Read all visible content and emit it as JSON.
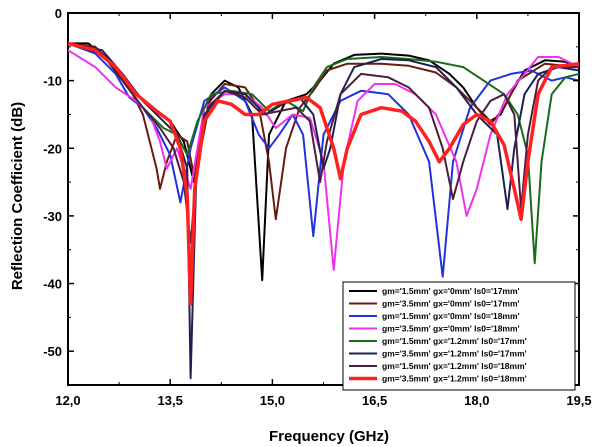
{
  "chart_data": {
    "type": "line",
    "title": "",
    "xlabel": "Frequency (GHz)",
    "ylabel": "Reflection Coefficient (dB)",
    "xlim": [
      12.0,
      19.5
    ],
    "ylim": [
      -55,
      0
    ],
    "xticks": [
      12.0,
      13.5,
      15.0,
      16.5,
      18.0,
      19.5
    ],
    "xtick_labels": [
      "12,0",
      "13,5",
      "15,0",
      "16,5",
      "18,0",
      "19,5"
    ],
    "yticks": [
      0,
      -10,
      -20,
      -30,
      -40,
      -50
    ],
    "ytick_labels": [
      "0",
      "-10",
      "-20",
      "-30",
      "-40",
      "-50"
    ],
    "legend_position": "bottom-right",
    "series": [
      {
        "name": "gm='1.5mm' gx='0mm' ls0='17mm'",
        "color": "#000000",
        "width": 2,
        "points": [
          [
            12.0,
            -4.5
          ],
          [
            12.3,
            -4.5
          ],
          [
            12.6,
            -7
          ],
          [
            12.9,
            -11
          ],
          [
            13.2,
            -14
          ],
          [
            13.5,
            -16
          ],
          [
            13.7,
            -19
          ],
          [
            13.85,
            -25
          ],
          [
            13.95,
            -20
          ],
          [
            14.1,
            -12
          ],
          [
            14.3,
            -10
          ],
          [
            14.5,
            -11
          ],
          [
            14.7,
            -15
          ],
          [
            14.85,
            -39.5
          ],
          [
            14.95,
            -18
          ],
          [
            15.2,
            -13
          ],
          [
            15.5,
            -12
          ],
          [
            15.7,
            -10
          ],
          [
            15.9,
            -7.5
          ],
          [
            16.2,
            -6.2
          ],
          [
            16.6,
            -6
          ],
          [
            17.0,
            -6.3
          ],
          [
            17.3,
            -7
          ],
          [
            17.6,
            -9
          ],
          [
            17.8,
            -11
          ],
          [
            18.0,
            -14
          ],
          [
            18.2,
            -16
          ],
          [
            18.35,
            -15
          ],
          [
            18.5,
            -12
          ],
          [
            18.7,
            -8.5
          ],
          [
            19.0,
            -7
          ],
          [
            19.3,
            -7.2
          ],
          [
            19.5,
            -8
          ]
        ]
      },
      {
        "name": "gm='3.5mm' gx='0mm' ls0='17mm'",
        "color": "#6b1a12",
        "width": 2,
        "points": [
          [
            12.0,
            -4.5
          ],
          [
            12.4,
            -5
          ],
          [
            12.8,
            -9
          ],
          [
            13.1,
            -15
          ],
          [
            13.3,
            -23
          ],
          [
            13.35,
            -26
          ],
          [
            13.45,
            -22
          ],
          [
            13.6,
            -18
          ],
          [
            13.75,
            -19
          ],
          [
            13.85,
            -24
          ],
          [
            14.0,
            -14
          ],
          [
            14.3,
            -10.5
          ],
          [
            14.6,
            -11
          ],
          [
            14.8,
            -14
          ],
          [
            14.95,
            -22
          ],
          [
            15.05,
            -30.5
          ],
          [
            15.2,
            -20
          ],
          [
            15.4,
            -14
          ],
          [
            15.6,
            -11.5
          ],
          [
            15.8,
            -8.5
          ],
          [
            16.1,
            -7.5
          ],
          [
            16.6,
            -7.5
          ],
          [
            17.0,
            -7.8
          ],
          [
            17.4,
            -8.8
          ],
          [
            17.7,
            -11
          ],
          [
            18.0,
            -14
          ],
          [
            18.2,
            -16.5
          ],
          [
            18.4,
            -14
          ],
          [
            18.6,
            -10
          ],
          [
            19.0,
            -7.5
          ],
          [
            19.5,
            -8
          ]
        ]
      },
      {
        "name": "gm='1.5mm' gx='0mm' ls0='18mm'",
        "color": "#2233dd",
        "width": 2,
        "points": [
          [
            12.0,
            -4.5
          ],
          [
            12.4,
            -6
          ],
          [
            12.7,
            -9
          ],
          [
            12.9,
            -12.5
          ],
          [
            13.1,
            -14
          ],
          [
            13.3,
            -17
          ],
          [
            13.5,
            -21
          ],
          [
            13.65,
            -28
          ],
          [
            13.8,
            -20
          ],
          [
            14.0,
            -13
          ],
          [
            14.3,
            -11
          ],
          [
            14.6,
            -13
          ],
          [
            14.8,
            -18
          ],
          [
            14.95,
            -20
          ],
          [
            15.1,
            -18
          ],
          [
            15.3,
            -15
          ],
          [
            15.45,
            -18
          ],
          [
            15.6,
            -33
          ],
          [
            15.75,
            -18
          ],
          [
            16.0,
            -13
          ],
          [
            16.3,
            -11.5
          ],
          [
            16.7,
            -12
          ],
          [
            17.0,
            -15
          ],
          [
            17.3,
            -22
          ],
          [
            17.5,
            -39
          ],
          [
            17.65,
            -22
          ],
          [
            17.9,
            -14
          ],
          [
            18.2,
            -10
          ],
          [
            18.5,
            -9
          ],
          [
            18.8,
            -8.5
          ],
          [
            19.1,
            -10
          ],
          [
            19.3,
            -9.5
          ],
          [
            19.5,
            -10
          ]
        ]
      },
      {
        "name": "gm='3.5mm' gx='0mm' ls0='18mm'",
        "color": "#ee33ee",
        "width": 2,
        "points": [
          [
            12.0,
            -5.5
          ],
          [
            12.4,
            -8
          ],
          [
            12.7,
            -11
          ],
          [
            13.0,
            -13
          ],
          [
            13.2,
            -15
          ],
          [
            13.35,
            -19
          ],
          [
            13.45,
            -23
          ],
          [
            13.6,
            -20
          ],
          [
            13.8,
            -26
          ],
          [
            14.0,
            -14
          ],
          [
            14.3,
            -12
          ],
          [
            14.6,
            -12
          ],
          [
            14.85,
            -14
          ],
          [
            15.05,
            -17
          ],
          [
            15.3,
            -15
          ],
          [
            15.55,
            -15.5
          ],
          [
            15.75,
            -22
          ],
          [
            15.9,
            -38
          ],
          [
            16.05,
            -22
          ],
          [
            16.25,
            -13
          ],
          [
            16.5,
            -10.5
          ],
          [
            16.8,
            -10.5
          ],
          [
            17.1,
            -12
          ],
          [
            17.4,
            -15
          ],
          [
            17.7,
            -22
          ],
          [
            17.85,
            -30
          ],
          [
            18.0,
            -26
          ],
          [
            18.2,
            -18
          ],
          [
            18.45,
            -12
          ],
          [
            18.7,
            -9
          ],
          [
            18.9,
            -6.5
          ],
          [
            19.2,
            -6.5
          ],
          [
            19.5,
            -8
          ]
        ]
      },
      {
        "name": "gm='1.5mm' gx='1.2mm' ls0='17mm'",
        "color": "#1a6b1a",
        "width": 2,
        "points": [
          [
            12.0,
            -4.5
          ],
          [
            12.5,
            -6
          ],
          [
            12.8,
            -10
          ],
          [
            13.1,
            -14
          ],
          [
            13.4,
            -17
          ],
          [
            13.6,
            -18
          ],
          [
            13.75,
            -21
          ],
          [
            13.9,
            -16
          ],
          [
            14.1,
            -12
          ],
          [
            14.4,
            -11.5
          ],
          [
            14.7,
            -12
          ],
          [
            14.95,
            -14.5
          ],
          [
            15.2,
            -13
          ],
          [
            15.45,
            -14.5
          ],
          [
            15.6,
            -11
          ],
          [
            15.8,
            -8
          ],
          [
            16.1,
            -6.8
          ],
          [
            16.6,
            -6.5
          ],
          [
            17.0,
            -6.8
          ],
          [
            17.4,
            -7.2
          ],
          [
            17.8,
            -8
          ],
          [
            18.1,
            -10
          ],
          [
            18.4,
            -12
          ],
          [
            18.6,
            -15
          ],
          [
            18.75,
            -21
          ],
          [
            18.85,
            -37
          ],
          [
            18.95,
            -22
          ],
          [
            19.1,
            -12
          ],
          [
            19.3,
            -9.5
          ],
          [
            19.5,
            -9
          ]
        ]
      },
      {
        "name": "gm='3.5mm' gx='1.2mm' ls0='17mm'",
        "color": "#202050",
        "width": 2,
        "points": [
          [
            12.0,
            -4.5
          ],
          [
            12.5,
            -5.5
          ],
          [
            12.8,
            -9
          ],
          [
            13.1,
            -13
          ],
          [
            13.4,
            -16
          ],
          [
            13.6,
            -18
          ],
          [
            13.75,
            -23
          ],
          [
            13.8,
            -54
          ],
          [
            13.88,
            -25
          ],
          [
            14.0,
            -15
          ],
          [
            14.3,
            -11.5
          ],
          [
            14.6,
            -12
          ],
          [
            14.9,
            -15
          ],
          [
            15.15,
            -13.5
          ],
          [
            15.4,
            -12.5
          ],
          [
            15.6,
            -15
          ],
          [
            15.75,
            -23
          ],
          [
            15.85,
            -20
          ],
          [
            16.0,
            -12
          ],
          [
            16.2,
            -8
          ],
          [
            16.6,
            -6.8
          ],
          [
            17.0,
            -7
          ],
          [
            17.4,
            -8
          ],
          [
            17.7,
            -11
          ],
          [
            18.0,
            -15
          ],
          [
            18.3,
            -18
          ],
          [
            18.45,
            -29
          ],
          [
            18.55,
            -20
          ],
          [
            18.7,
            -12
          ],
          [
            18.9,
            -9
          ],
          [
            19.2,
            -8
          ],
          [
            19.5,
            -8.5
          ]
        ]
      },
      {
        "name": "gm='1.5mm' gx='1.2mm' ls0='18mm'",
        "color": "#4a1e40",
        "width": 2,
        "points": [
          [
            12.0,
            -4.5
          ],
          [
            12.5,
            -6
          ],
          [
            12.8,
            -10
          ],
          [
            13.1,
            -14
          ],
          [
            13.35,
            -17
          ],
          [
            13.55,
            -20
          ],
          [
            13.7,
            -25
          ],
          [
            13.8,
            -34
          ],
          [
            13.9,
            -22
          ],
          [
            14.05,
            -14
          ],
          [
            14.3,
            -11.5
          ],
          [
            14.6,
            -12.5
          ],
          [
            14.85,
            -15
          ],
          [
            15.1,
            -14.5
          ],
          [
            15.35,
            -14
          ],
          [
            15.55,
            -16
          ],
          [
            15.7,
            -25
          ],
          [
            15.8,
            -19
          ],
          [
            16.0,
            -12
          ],
          [
            16.3,
            -9
          ],
          [
            16.7,
            -9.5
          ],
          [
            17.0,
            -11
          ],
          [
            17.3,
            -14
          ],
          [
            17.5,
            -20
          ],
          [
            17.65,
            -27.5
          ],
          [
            17.8,
            -22
          ],
          [
            18.0,
            -16
          ],
          [
            18.2,
            -13
          ],
          [
            18.4,
            -12
          ],
          [
            18.55,
            -15
          ],
          [
            18.65,
            -29
          ],
          [
            18.75,
            -18
          ],
          [
            18.9,
            -10
          ],
          [
            19.1,
            -8
          ],
          [
            19.5,
            -8
          ]
        ]
      },
      {
        "name": "gm='3.5mm' gx='1.2mm' ls0='18mm'",
        "color": "#ff2020",
        "width": 3.5,
        "points": [
          [
            12.0,
            -4.5
          ],
          [
            12.4,
            -5.5
          ],
          [
            12.7,
            -8
          ],
          [
            13.0,
            -12
          ],
          [
            13.3,
            -14.5
          ],
          [
            13.5,
            -16
          ],
          [
            13.65,
            -20
          ],
          [
            13.75,
            -27
          ],
          [
            13.8,
            -43
          ],
          [
            13.86,
            -26
          ],
          [
            14.0,
            -16
          ],
          [
            14.2,
            -13
          ],
          [
            14.4,
            -13.5
          ],
          [
            14.6,
            -15
          ],
          [
            14.8,
            -15
          ],
          [
            15.0,
            -13.5
          ],
          [
            15.25,
            -13
          ],
          [
            15.5,
            -12.5
          ],
          [
            15.7,
            -14
          ],
          [
            15.9,
            -20
          ],
          [
            16.0,
            -24.5
          ],
          [
            16.1,
            -20
          ],
          [
            16.3,
            -15
          ],
          [
            16.6,
            -14
          ],
          [
            16.9,
            -14.5
          ],
          [
            17.1,
            -16
          ],
          [
            17.3,
            -19
          ],
          [
            17.45,
            -22
          ],
          [
            17.6,
            -20
          ],
          [
            17.8,
            -16.5
          ],
          [
            18.0,
            -15
          ],
          [
            18.2,
            -16
          ],
          [
            18.4,
            -19.5
          ],
          [
            18.55,
            -26
          ],
          [
            18.65,
            -30.5
          ],
          [
            18.75,
            -22
          ],
          [
            18.9,
            -12
          ],
          [
            19.1,
            -8
          ],
          [
            19.5,
            -7.5
          ]
        ]
      }
    ]
  }
}
